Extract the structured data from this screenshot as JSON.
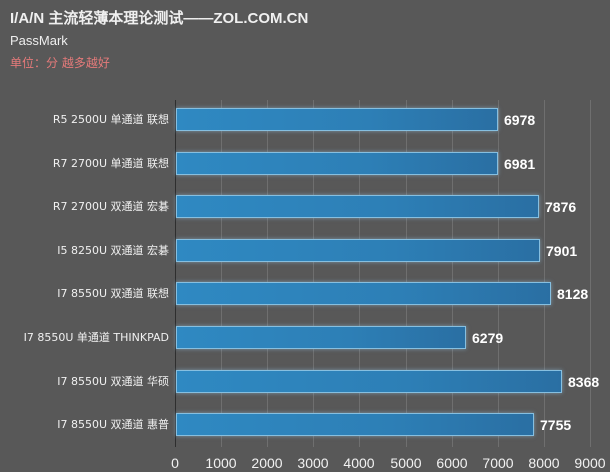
{
  "header": {
    "title": "I/A/N 主流轻薄本理论测试——ZOL.COM.CN",
    "subtitle": "PassMark",
    "unit_note": "单位：分 越多越好"
  },
  "colors": {
    "background": "#585858",
    "bar_fill": "#2f89c2",
    "bar_border": "#86bfe0",
    "unit_note": "#e47a7a",
    "text": "#f0f0f0"
  },
  "chart_data": {
    "type": "bar",
    "orientation": "horizontal",
    "title": "I/A/N 主流轻薄本理论测试——ZOL.COM.CN",
    "subtitle": "PassMark",
    "annotation": "单位：分 越多越好",
    "xlabel": "",
    "ylabel": "",
    "categories": [
      "R5 2500U 单通道 联想",
      "R7 2700U 单通道 联想",
      "R7 2700U 双通道 宏碁",
      "I5 8250U 双通道 宏碁",
      "I7 8550U 双通道 联想",
      "I7 8550U 单通道 THINKPAD",
      "I7 8550U 双通道 华硕",
      "I7 8550U 双通道 惠普"
    ],
    "values": [
      6978,
      6981,
      7876,
      7901,
      8128,
      6279,
      8368,
      7755
    ],
    "value_labels": [
      "6978",
      "6981",
      "7876",
      "7901",
      "8128",
      "6279",
      "8368",
      "7755"
    ],
    "xlim": [
      0,
      9000
    ],
    "xticks": [
      "0",
      "1000",
      "2000",
      "3000",
      "4000",
      "5000",
      "6000",
      "7000",
      "8000",
      "9000"
    ],
    "grid": true,
    "legend": null
  }
}
